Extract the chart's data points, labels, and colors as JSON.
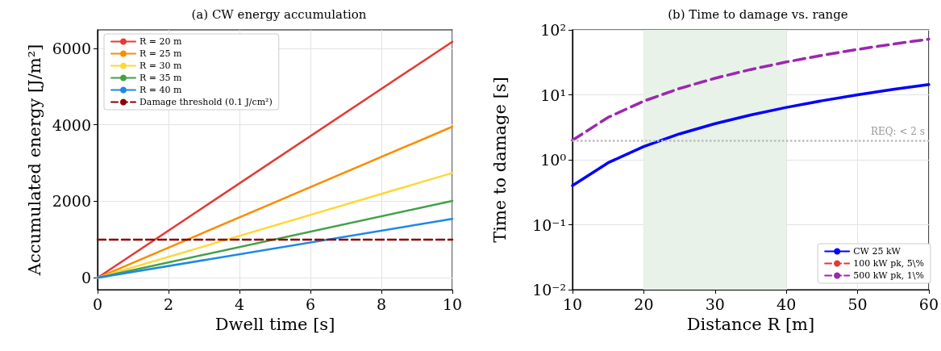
{
  "chart_data": [
    {
      "type": "line",
      "title": "(a) CW energy accumulation",
      "xlabel": "Dwell time [s]",
      "ylabel": "Accumulated energy [J/m²]",
      "x": [
        0,
        10
      ],
      "series": [
        {
          "name": "R = 20 m",
          "color": "#e53935",
          "values": [
            0,
            6170
          ]
        },
        {
          "name": "R = 25 m",
          "color": "#fb8c00",
          "values": [
            0,
            3950
          ]
        },
        {
          "name": "R = 30 m",
          "color": "#fdd835",
          "values": [
            0,
            2740
          ]
        },
        {
          "name": "R = 35 m",
          "color": "#43a047",
          "values": [
            0,
            2010
          ]
        },
        {
          "name": "R = 40 m",
          "color": "#1e88e5",
          "values": [
            0,
            1540
          ]
        },
        {
          "name": "Damage threshold (0.1 J/cm²)",
          "color": "#8b0000",
          "values": [
            1000,
            1000
          ],
          "line_style": "dashed"
        }
      ],
      "xlim": [
        0,
        10
      ],
      "xticks": [
        0,
        2,
        4,
        6,
        8,
        10
      ],
      "ylim": [
        -310,
        6480
      ],
      "yticks": [
        0,
        2000,
        4000,
        6000
      ],
      "grid": true,
      "legend": "top left",
      "marker": "none",
      "line_style": "solid"
    },
    {
      "type": "line",
      "title": "(b) Time to damage vs. range",
      "xlabel": "Distance R [m]",
      "ylabel": "Time to damage [s]",
      "x": [
        10,
        15,
        20,
        25,
        30,
        35,
        40,
        45,
        50,
        55,
        60
      ],
      "series": [
        {
          "name": "CW 25 kW",
          "color": "#0000ff",
          "values": [
            0.4,
            0.9,
            1.6,
            2.5,
            3.6,
            4.9,
            6.4,
            8.1,
            10,
            12.1,
            14.4
          ],
          "line_style": "solid"
        },
        {
          "name": "100 kW pk, 5\\%",
          "color": "#e53935",
          "values": [
            null,
            null,
            null,
            null,
            null,
            null,
            null,
            null,
            null,
            null,
            null
          ],
          "line_style": "dashed"
        },
        {
          "name": "500 kW pk, 1\\%",
          "color": "#9c27b0",
          "values": [
            2,
            4.5,
            8,
            12.5,
            18,
            24.5,
            32,
            40.5,
            50,
            60.5,
            72
          ],
          "line_style": "dashed"
        }
      ],
      "xlim": [
        10,
        60
      ],
      "xticks": [
        10,
        20,
        30,
        40,
        50,
        60
      ],
      "ylim": [
        0.01,
        100
      ],
      "yticks": [
        {
          "value": 0.01,
          "label": "10⁻²"
        },
        {
          "value": 0.1,
          "label": "10⁻¹"
        },
        {
          "value": 1,
          "label": "10⁰"
        },
        {
          "value": 10,
          "label": "10¹"
        },
        {
          "value": 100,
          "label": "10²"
        }
      ],
      "log": "y",
      "ref_lines": [
        {
          "axis": "y",
          "value": 2,
          "label": "REQ: < 2 s",
          "color": "#bdbdbd",
          "line_style": "dotted"
        }
      ],
      "bands": [
        {
          "axis": "x",
          "from": 20,
          "to": 40,
          "color": "#e8f2e8"
        }
      ],
      "grid": true,
      "legend": "bottom right",
      "marker": "none"
    }
  ]
}
